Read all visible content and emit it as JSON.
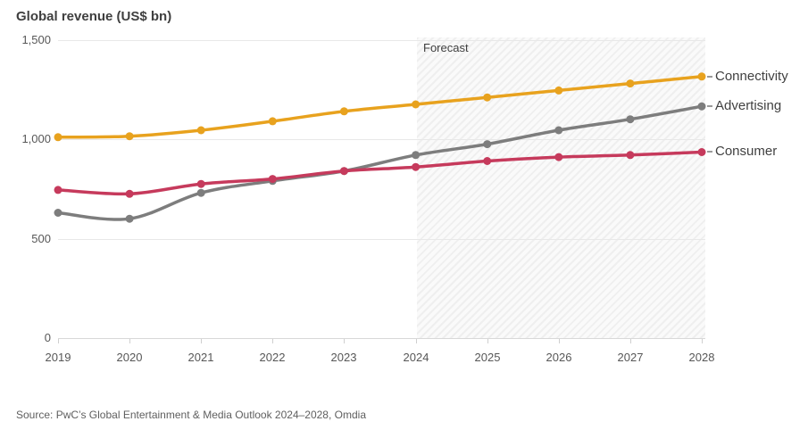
{
  "title": "Global revenue (US$ bn)",
  "forecast_label": "Forecast",
  "source": "Source: PwC’s Global Entertainment & Media Outlook 2024–2028, Omdia",
  "colors": {
    "connectivity": "#E8A21E",
    "advertising": "#7D7D7D",
    "consumer": "#C63A5C",
    "grid": "#E8E8E8",
    "axis": "#D8D8D8",
    "tick_text": "#575757",
    "title_text": "#3F3F3F"
  },
  "chart_data": {
    "type": "line",
    "title": "Global revenue (US$ bn)",
    "xlabel": "",
    "ylabel": "US$ bn",
    "x": [
      2019,
      2020,
      2021,
      2022,
      2023,
      2024,
      2025,
      2026,
      2027,
      2028
    ],
    "x_labels": [
      "2019",
      "2020",
      "2021",
      "2022",
      "2023",
      "2024",
      "2025",
      "2026",
      "2027",
      "2028"
    ],
    "ylim": [
      0,
      1500
    ],
    "yticks": [
      0,
      500,
      1000,
      1500
    ],
    "ytick_labels": [
      "0",
      "500",
      "1,000",
      "1,500"
    ],
    "grid": true,
    "legend_position": "right-end-labels",
    "forecast_start_year": 2024,
    "forecast_start_index": 5,
    "series": [
      {
        "name": "Connectivity",
        "color": "#E8A21E",
        "values": [
          1010,
          1015,
          1045,
          1090,
          1140,
          1175,
          1210,
          1245,
          1280,
          1315
        ]
      },
      {
        "name": "Advertising",
        "color": "#7D7D7D",
        "values": [
          630,
          600,
          730,
          790,
          840,
          920,
          975,
          1045,
          1100,
          1165
        ]
      },
      {
        "name": "Consumer",
        "color": "#C63A5C",
        "values": [
          745,
          725,
          775,
          800,
          840,
          860,
          890,
          910,
          920,
          935
        ]
      }
    ]
  }
}
